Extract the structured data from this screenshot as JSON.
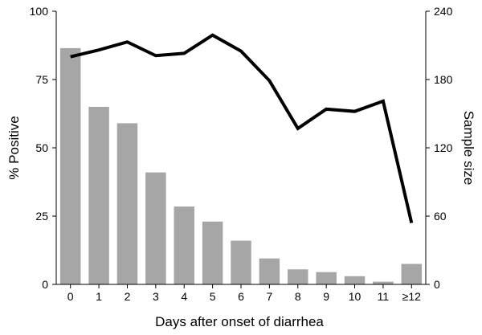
{
  "chart_data": {
    "type": "bar+line",
    "categories": [
      "0",
      "1",
      "2",
      "3",
      "4",
      "5",
      "6",
      "7",
      "8",
      "9",
      "10",
      "11",
      "≥12"
    ],
    "series": [
      {
        "type": "bar",
        "axis": "left",
        "color": "#a6a6a6",
        "values": [
          86.5,
          65,
          59,
          41,
          28.5,
          23,
          16,
          9.5,
          5.5,
          4.5,
          3,
          1,
          7.5
        ]
      },
      {
        "type": "line",
        "axis": "right",
        "color": "#000000",
        "values": [
          200,
          206,
          213,
          201,
          203,
          219,
          205,
          179,
          137,
          154,
          152,
          161,
          54
        ]
      }
    ],
    "xlabel": "Days after onset of diarrhea",
    "ylabel": "% Positive",
    "y2label": "Sample size",
    "ylim": [
      0,
      100
    ],
    "y2lim": [
      0,
      240
    ],
    "yticks": [
      "0",
      "25",
      "50",
      "75",
      "100"
    ],
    "y2ticks": [
      "0",
      "60",
      "120",
      "180",
      "240"
    ],
    "grid": false,
    "legend": "none"
  }
}
